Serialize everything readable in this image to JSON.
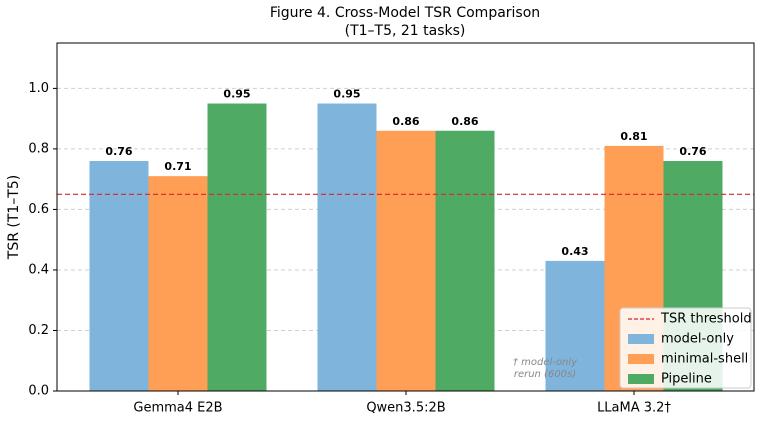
{
  "chart_data": {
    "type": "bar",
    "title": "Figure 4. Cross-Model TSR Comparison",
    "subtitle": "(T1–T5, 21 tasks)",
    "ylabel": "TSR (T1–T5)",
    "categories": [
      "Gemma4 E2B",
      "Qwen3.5:2B",
      "LLaMA 3.2†"
    ],
    "series": [
      {
        "name": "model-only",
        "color": "#7fb5dc",
        "values": [
          0.76,
          0.95,
          0.43
        ]
      },
      {
        "name": "minimal-shell",
        "color": "#fe9f55",
        "values": [
          0.71,
          0.86,
          0.81
        ]
      },
      {
        "name": "Pipeline",
        "color": "#4fab64",
        "values": [
          0.95,
          0.86,
          0.76
        ]
      }
    ],
    "threshold": {
      "value": 0.65,
      "label": "TSR threshold",
      "color": "#d62728"
    },
    "annotation": [
      "† model-only",
      "rerun (600s)"
    ],
    "ylim": [
      0,
      1.15
    ],
    "yticks": [
      {
        "value": 0,
        "label": "0.0"
      },
      0.2,
      0.4,
      0.6,
      0.8,
      {
        "value": 1,
        "label": "1.0"
      }
    ],
    "grid": true,
    "legend": "lower right"
  }
}
